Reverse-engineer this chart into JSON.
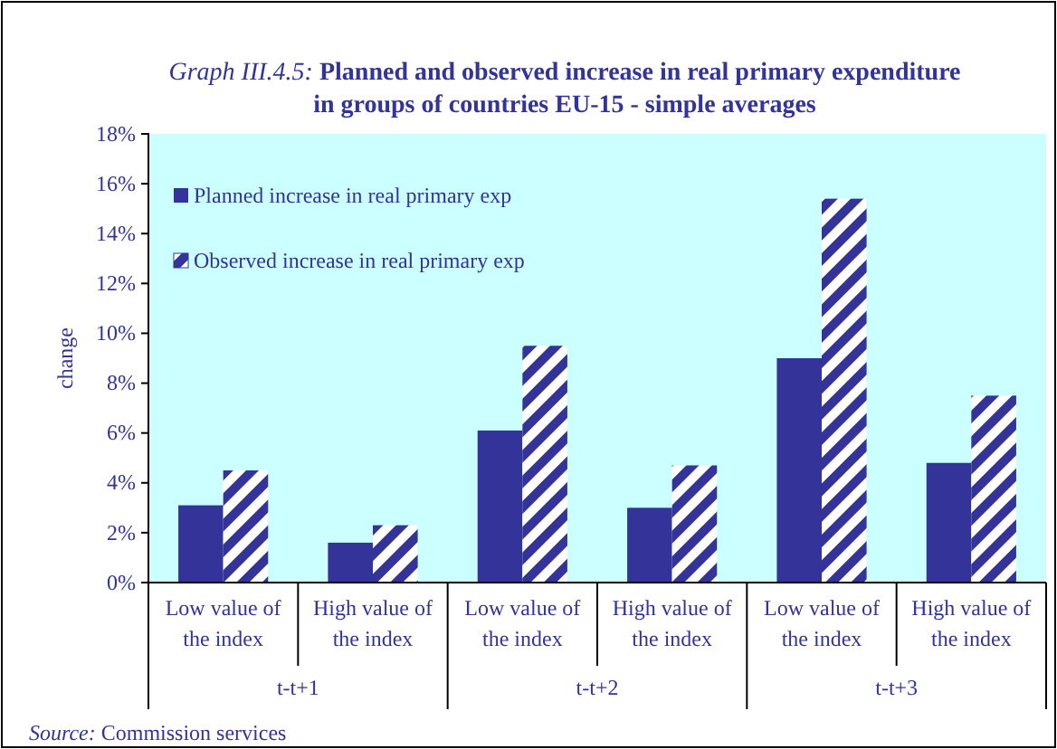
{
  "chart_data": {
    "type": "bar",
    "title": "Graph III.4.5: Planned and observed increase in real primary expenditure",
    "subtitle": "in groups of countries EU-15 - simple averages",
    "ylabel": "change",
    "categories": [
      "Low value of the index",
      "High value of the index",
      "Low value of the index",
      "High value of the index",
      "Low value of the index",
      "High value of the index"
    ],
    "series": [
      {
        "name": "Planned increase in real primary exp",
        "color": "#333399",
        "values": [
          3.1,
          1.6,
          6.1,
          3.0,
          9.0,
          4.8
        ]
      },
      {
        "name": "Observed increase in real primary exp",
        "color": "#333399",
        "values": [
          4.5,
          2.3,
          9.5,
          4.7,
          15.4,
          7.5
        ]
      }
    ],
    "ylim": [
      0,
      18
    ],
    "yticks": [
      {
        "value": 0,
        "label": "0%"
      },
      {
        "value": 2,
        "label": "2%"
      },
      {
        "value": 4,
        "label": "4%"
      },
      {
        "value": 6,
        "label": "6%"
      },
      {
        "value": 8,
        "label": "8%"
      },
      {
        "value": 10,
        "label": "10%"
      },
      {
        "value": 12,
        "label": "12%"
      },
      {
        "value": 14,
        "label": "14%"
      },
      {
        "value": 16,
        "label": "16%"
      },
      {
        "value": 18,
        "label": "18%"
      }
    ],
    "grid": false,
    "legend": "top left",
    "annotations": [
      "t-t+1",
      "t-t+2",
      "t-t+3",
      "Source: Commission services"
    ]
  }
}
